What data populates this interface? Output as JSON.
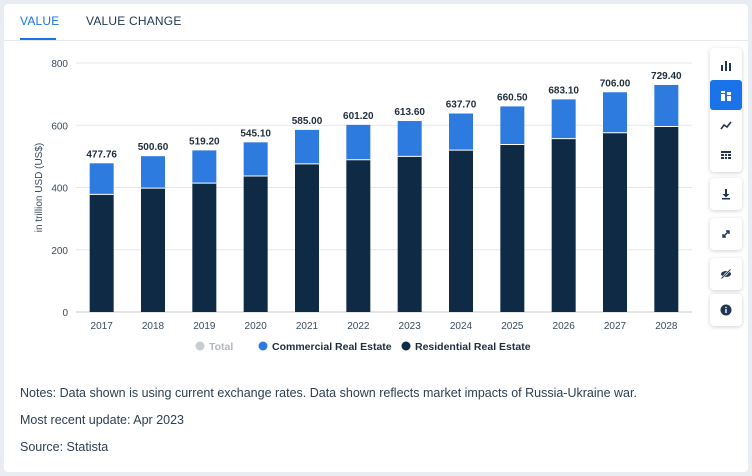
{
  "tabs": [
    {
      "label": "VALUE",
      "active": true
    },
    {
      "label": "VALUE CHANGE",
      "active": false
    }
  ],
  "colors": {
    "residential": "#0f2a44",
    "commercial": "#2e7be0",
    "total": "#c8cdd3",
    "accent": "#1a73e8"
  },
  "toolbar": [
    "bar-chart-icon",
    "stacked-bar-icon",
    "line-chart-icon",
    "table-icon",
    "download-icon",
    "expand-icon",
    "hide-icon",
    "info-icon"
  ],
  "chart_data": {
    "type": "bar",
    "stacked": true,
    "ylabel": "in trillion USD (US$)",
    "ylim": [
      0,
      800
    ],
    "yticks": [
      0,
      200,
      400,
      600,
      800
    ],
    "categories": [
      "2017",
      "2018",
      "2019",
      "2020",
      "2021",
      "2022",
      "2023",
      "2024",
      "2025",
      "2026",
      "2027",
      "2028"
    ],
    "series": [
      {
        "name": "Residential Real Estate",
        "values": [
          378,
          398,
          414,
          437,
          476,
          489,
          500,
          520,
          538,
          557,
          576,
          596
        ]
      },
      {
        "name": "Commercial Real Estate",
        "values": [
          99.76,
          102.6,
          105.2,
          108.1,
          109,
          112.2,
          113.6,
          117.7,
          122.5,
          126.1,
          130,
          133.4
        ]
      }
    ],
    "total_labels": [
      "477.76",
      "500.60",
      "519.20",
      "545.10",
      "585.00",
      "601.20",
      "613.60",
      "637.70",
      "660.50",
      "683.10",
      "706.00",
      "729.40"
    ],
    "legend": [
      {
        "name": "Total",
        "muted": true
      },
      {
        "name": "Commercial Real Estate",
        "muted": false
      },
      {
        "name": "Residential Real Estate",
        "muted": false
      }
    ],
    "grid": true,
    "legend_position": "bottom"
  },
  "notes": {
    "line1": "Notes: Data shown is using current exchange rates. Data shown reflects market impacts of Russia-Ukraine war.",
    "line2": "Most recent update: Apr 2023",
    "line3": "Source: Statista"
  }
}
